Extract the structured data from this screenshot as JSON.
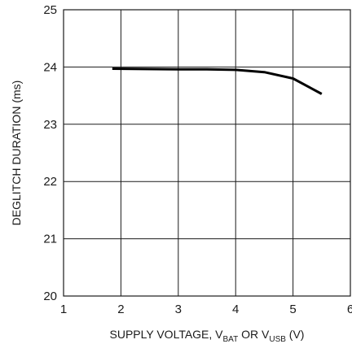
{
  "chart_data": {
    "type": "line",
    "xlabel": {
      "prefix": "SUPPLY VOLTAGE, V",
      "sub1": "BAT",
      "middle": " OR V",
      "sub2": "USB",
      "suffix": " (V)"
    },
    "ylabel": "DEGLITCH DURATION (ms)",
    "xlim": [
      1,
      6
    ],
    "ylim": [
      20,
      25
    ],
    "xticks": [
      "1",
      "2",
      "3",
      "4",
      "5",
      "6"
    ],
    "yticks": [
      "20",
      "21",
      "22",
      "23",
      "24",
      "25"
    ],
    "grid": true,
    "series": [
      {
        "color": "#000000",
        "points": [
          [
            1.85,
            23.97
          ],
          [
            3.0,
            23.96
          ],
          [
            3.5,
            23.96
          ],
          [
            4.0,
            23.95
          ],
          [
            4.5,
            23.91
          ],
          [
            5.0,
            23.8
          ],
          [
            5.5,
            23.53
          ]
        ]
      }
    ]
  }
}
